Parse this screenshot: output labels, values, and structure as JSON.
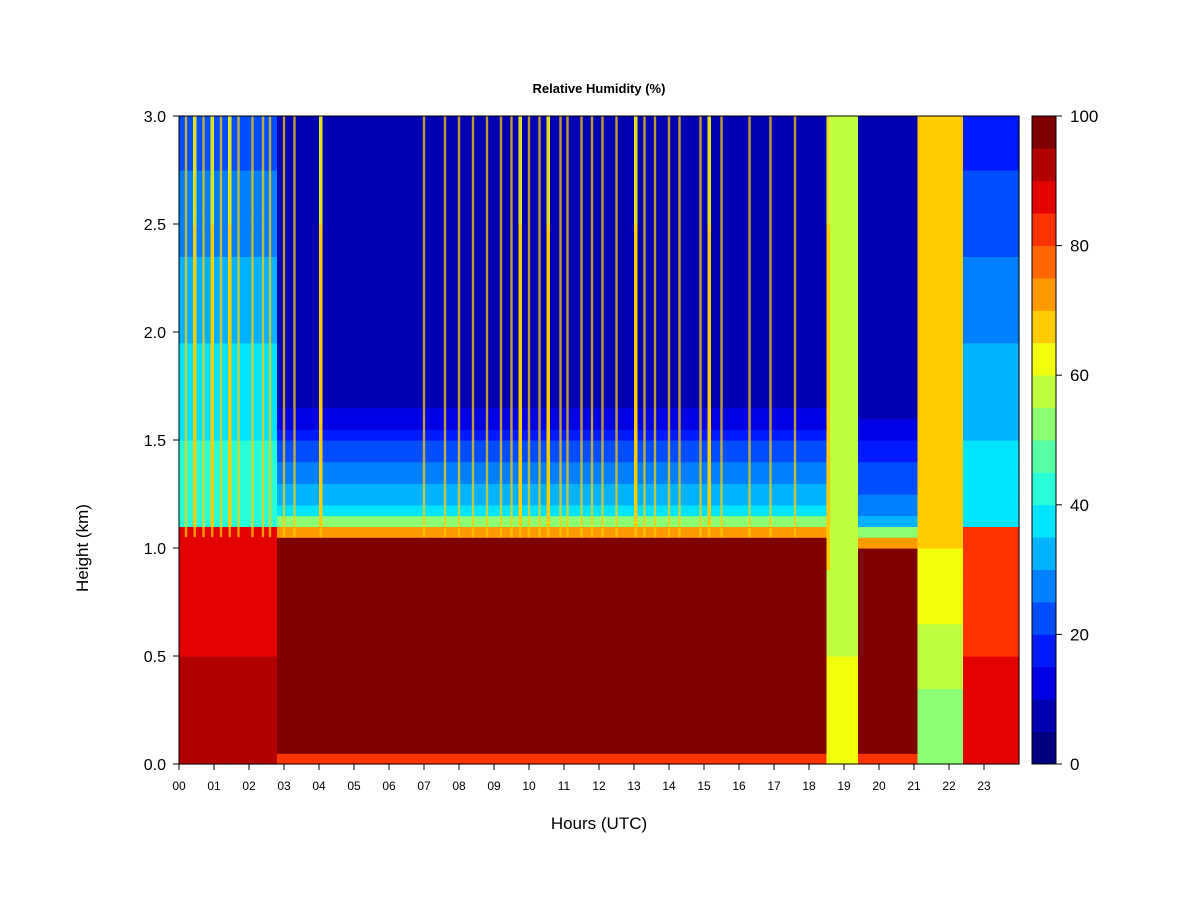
{
  "chart_data": {
    "type": "heatmap",
    "title": "Relative Humidity (%)",
    "xlabel": "Hours (UTC)",
    "ylabel": "Height (km)",
    "xlim": [
      0,
      24
    ],
    "ylim": [
      0,
      3.0
    ],
    "x_tick_labels": [
      "00",
      "01",
      "02",
      "03",
      "04",
      "05",
      "06",
      "07",
      "08",
      "09",
      "10",
      "11",
      "12",
      "13",
      "14",
      "15",
      "16",
      "17",
      "18",
      "19",
      "20",
      "21",
      "22",
      "23"
    ],
    "y_tick_values": [
      0.0,
      0.5,
      1.0,
      1.5,
      2.0,
      2.5,
      3.0
    ],
    "y_tick_labels": [
      "0.0",
      "0.5",
      "1.0",
      "1.5",
      "2.0",
      "2.5",
      "3.0"
    ],
    "colorbar": {
      "range": [
        0,
        100
      ],
      "step": 5,
      "tick_values": [
        0,
        20,
        40,
        60,
        80,
        100
      ],
      "tick_labels": [
        "0",
        "20",
        "40",
        "60",
        "80",
        "100"
      ],
      "colors": [
        "#00007f",
        "#0000b2",
        "#0000e5",
        "#0019ff",
        "#004cff",
        "#007fff",
        "#00b2ff",
        "#00e5ff",
        "#26ffd8",
        "#59ffa5",
        "#8cff72",
        "#bfff3f",
        "#f2ff0c",
        "#ffcc00",
        "#ff9900",
        "#ff6600",
        "#ff3300",
        "#e50000",
        "#b20000",
        "#7f0000"
      ]
    },
    "regimes": [
      {
        "hours": [
          0.0,
          2.8
        ],
        "description": "moist column",
        "surface_rh": 90,
        "boundary_layer_top_km": 1.1,
        "above_rh": 45
      },
      {
        "hours": [
          2.8,
          18.5
        ],
        "description": "saturated boundary layer under dry air",
        "boundary_layer_rh": 100,
        "boundary_layer_top_km": 1.05,
        "transition_rh": 40,
        "free_troposphere_rh": 5
      },
      {
        "hours": [
          18.5,
          19.4
        ],
        "description": "moist column",
        "surface_rh": 65,
        "above_rh": 55
      },
      {
        "hours": [
          19.4,
          21.1
        ],
        "description": "saturated layer under dry air",
        "boundary_layer_rh": 98,
        "boundary_layer_top_km": 1.0,
        "free_troposphere_rh": 8
      },
      {
        "hours": [
          21.1,
          22.4
        ],
        "description": "moist column",
        "surface_rh": 50,
        "above_rh": 65
      },
      {
        "hours": [
          22.4,
          24.0
        ],
        "description": "moist column",
        "surface_rh": 85,
        "boundary_layer_top_km": 1.1,
        "above_rh": 40
      }
    ],
    "moist_streaks_hours": [
      0.2,
      0.45,
      0.7,
      0.95,
      1.2,
      1.45,
      1.7,
      2.1,
      2.4,
      2.6,
      3.0,
      3.3,
      4.05,
      7.0,
      7.6,
      8.0,
      8.4,
      8.8,
      9.2,
      9.5,
      9.75,
      10.0,
      10.3,
      10.55,
      10.9,
      11.1,
      11.5,
      11.8,
      12.1,
      12.5,
      13.05,
      13.3,
      13.6,
      14.0,
      14.3,
      14.9,
      15.15,
      15.5,
      16.3,
      16.9,
      17.6,
      18.55
    ],
    "moist_streaks_rh": 65
  }
}
